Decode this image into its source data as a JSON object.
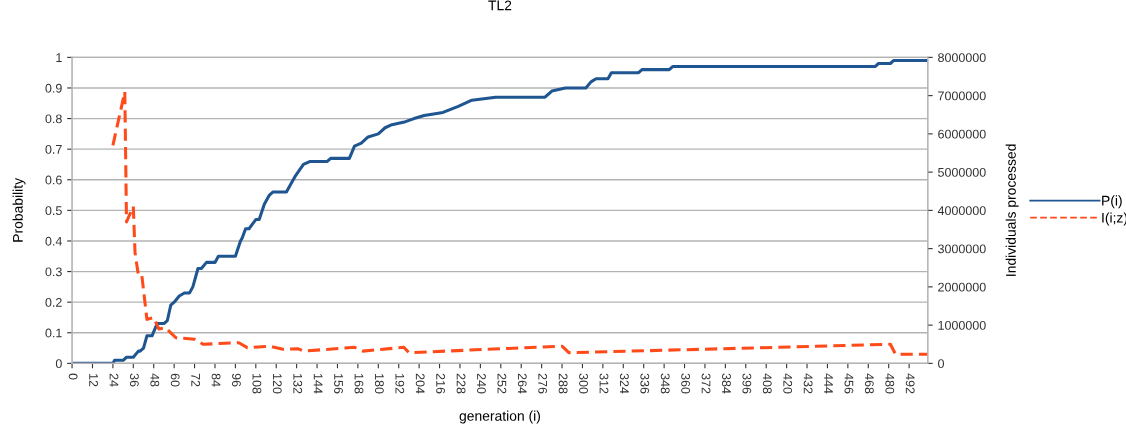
{
  "chart_data": {
    "type": "line",
    "title": "TL2",
    "xlabel": "generation (i)",
    "ylabel": "Probability",
    "y2label": "Individuals processed",
    "xlim": [
      0,
      503
    ],
    "xticks": [
      0,
      12,
      24,
      36,
      48,
      60,
      72,
      84,
      96,
      108,
      120,
      132,
      144,
      156,
      168,
      180,
      192,
      204,
      216,
      228,
      240,
      252,
      264,
      276,
      288,
      300,
      312,
      324,
      336,
      348,
      360,
      372,
      384,
      396,
      408,
      420,
      432,
      444,
      456,
      468,
      480,
      492
    ],
    "ylim": [
      0,
      1
    ],
    "yticks": [
      0,
      0.1,
      0.2,
      0.3,
      0.4,
      0.5,
      0.6,
      0.7,
      0.8,
      0.9,
      1
    ],
    "y2lim": [
      0,
      8000000
    ],
    "y2ticks": [
      0,
      1000000,
      2000000,
      3000000,
      4000000,
      5000000,
      6000000,
      7000000,
      8000000
    ],
    "grid": "y",
    "legend": "right",
    "marker": "none",
    "series": [
      {
        "name": "P(i)",
        "color": "#1f5591",
        "line_style": "solid",
        "x": [
          0,
          24,
          25,
          30,
          32,
          36,
          39,
          40,
          42,
          44,
          47,
          50,
          54,
          56,
          58,
          60,
          63,
          66,
          69,
          71,
          74,
          76,
          79,
          84,
          86,
          96,
          99,
          100,
          102,
          104,
          108,
          110,
          113,
          116,
          118,
          126,
          129,
          131,
          136,
          140,
          150,
          152,
          163,
          166,
          170,
          174,
          180,
          184,
          188,
          196,
          201,
          207,
          218,
          227,
          235,
          249,
          278,
          282,
          290,
          302,
          305,
          308,
          315,
          317,
          333,
          335,
          351,
          353,
          472,
          474,
          481,
          483,
          503
        ],
        "values": [
          0,
          0,
          0.01,
          0.01,
          0.02,
          0.02,
          0.04,
          0.04,
          0.05,
          0.09,
          0.09,
          0.13,
          0.13,
          0.14,
          0.19,
          0.2,
          0.22,
          0.23,
          0.23,
          0.25,
          0.31,
          0.31,
          0.33,
          0.33,
          0.35,
          0.35,
          0.4,
          0.41,
          0.44,
          0.44,
          0.47,
          0.47,
          0.52,
          0.55,
          0.56,
          0.56,
          0.59,
          0.61,
          0.65,
          0.66,
          0.66,
          0.67,
          0.67,
          0.71,
          0.72,
          0.74,
          0.75,
          0.77,
          0.78,
          0.79,
          0.8,
          0.81,
          0.82,
          0.84,
          0.86,
          0.87,
          0.87,
          0.89,
          0.9,
          0.9,
          0.92,
          0.93,
          0.93,
          0.95,
          0.95,
          0.96,
          0.96,
          0.97,
          0.97,
          0.98,
          0.98,
          0.99,
          0.99
        ]
      },
      {
        "name": "I(i;z)",
        "color": "#ff4b1a",
        "line_style": "dashed",
        "axis": "y2",
        "x": [
          24,
          30,
          31,
          32,
          34,
          36,
          37,
          39,
          41,
          44,
          48,
          51,
          55,
          61,
          72,
          77,
          98,
          103,
          116,
          124,
          133,
          136,
          166,
          171,
          195,
          198,
          288,
          292,
          372,
          481,
          484,
          503
        ],
        "values": [
          5700000,
          6900000,
          7100000,
          3700000,
          3900000,
          4100000,
          2900000,
          2300000,
          2300000,
          1150000,
          1200000,
          900000,
          930000,
          670000,
          630000,
          500000,
          540000,
          410000,
          450000,
          370000,
          380000,
          320000,
          420000,
          320000,
          420000,
          280000,
          450000,
          280000,
          370000,
          500000,
          240000,
          240000
        ]
      }
    ]
  }
}
